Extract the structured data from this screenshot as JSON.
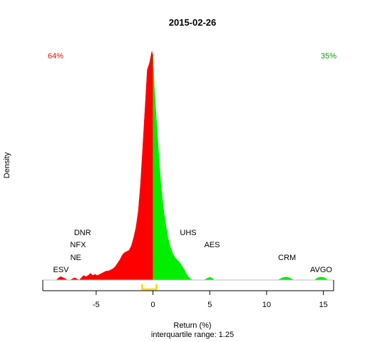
{
  "chart_data": {
    "type": "area",
    "title": "2015-02-26",
    "xlabel": "Return (%)",
    "ylabel": "Density",
    "subtitle": "interquartile range: 1.25",
    "xlim": [
      -9.7,
      15.9
    ],
    "ylim": [
      0,
      1.0
    ],
    "x_ticks": [
      -5,
      0,
      5,
      10,
      15
    ],
    "x_tick_labels": [
      "-5",
      "0",
      "5",
      "10",
      "15"
    ],
    "split_at": 0,
    "left_pct": "64%",
    "right_pct": "35%",
    "colors": {
      "negative": "#ff0000",
      "positive": "#00ee00",
      "iqr": "#ffd700",
      "axis": "#000000",
      "baseline": "#bebebe"
    },
    "iqr": [
      -0.95,
      0.3
    ],
    "density": {
      "x": [
        -8.5,
        -8.3,
        -8.1,
        -7.9,
        -7.7,
        -7.5,
        -7.3,
        -7.1,
        -6.9,
        -6.7,
        -6.5,
        -6.3,
        -6.1,
        -5.9,
        -5.7,
        -5.5,
        -5.3,
        -5.1,
        -4.9,
        -4.7,
        -4.5,
        -4.3,
        -4.1,
        -3.9,
        -3.7,
        -3.5,
        -3.3,
        -3.1,
        -2.9,
        -2.7,
        -2.5,
        -2.3,
        -2.1,
        -1.9,
        -1.7,
        -1.5,
        -1.3,
        -1.1,
        -0.9,
        -0.7,
        -0.5,
        -0.3,
        -0.1,
        0,
        0.1,
        0.3,
        0.5,
        0.7,
        0.9,
        1.1,
        1.3,
        1.5,
        1.7,
        1.9,
        2.1,
        2.3,
        2.5,
        2.7,
        2.9,
        3.1,
        3.3,
        3.5,
        4.5,
        4.8,
        5.0,
        5.2,
        5.4,
        5.7,
        6.5,
        11.0,
        11.4,
        11.7,
        12.0,
        12.4,
        13.0,
        14.2,
        14.5,
        14.8,
        15.1,
        15.4
      ],
      "y": [
        0.0,
        0.01,
        0.015,
        0.01,
        0.005,
        0.0,
        0.0,
        0.005,
        0.01,
        0.005,
        0.0,
        0.01,
        0.02,
        0.015,
        0.02,
        0.03,
        0.02,
        0.025,
        0.02,
        0.025,
        0.03,
        0.035,
        0.04,
        0.04,
        0.045,
        0.05,
        0.06,
        0.075,
        0.09,
        0.11,
        0.12,
        0.125,
        0.13,
        0.15,
        0.185,
        0.23,
        0.3,
        0.42,
        0.58,
        0.75,
        0.92,
        0.95,
        1.0,
        0.98,
        0.86,
        0.7,
        0.55,
        0.42,
        0.32,
        0.25,
        0.19,
        0.15,
        0.12,
        0.1,
        0.09,
        0.08,
        0.065,
        0.05,
        0.03,
        0.015,
        0.005,
        0.0,
        0.0,
        0.008,
        0.012,
        0.008,
        0.0,
        0.0,
        0.0,
        0.0,
        0.01,
        0.013,
        0.01,
        0.0,
        0.0,
        0.0,
        0.01,
        0.013,
        0.01,
        0.0
      ]
    },
    "annotations": [
      {
        "label": "ESV",
        "x": -8.1,
        "level": 0
      },
      {
        "label": "NE",
        "x": -6.8,
        "level": 1
      },
      {
        "label": "NFX",
        "x": -6.6,
        "level": 2
      },
      {
        "label": "DNR",
        "x": -6.2,
        "level": 3
      },
      {
        "label": "UHS",
        "x": 3.1,
        "level": 3
      },
      {
        "label": "AES",
        "x": 5.2,
        "level": 2
      },
      {
        "label": "CRM",
        "x": 11.8,
        "level": 1
      },
      {
        "label": "AVGO",
        "x": 14.8,
        "level": 0
      }
    ]
  }
}
